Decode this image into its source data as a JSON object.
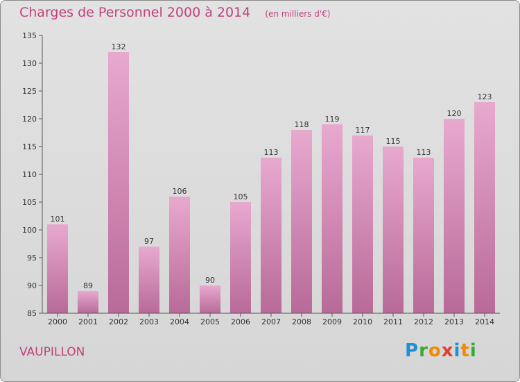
{
  "title": "Charges de Personnel 2000 à 2014",
  "unit": "(en milliers d'€)",
  "commune": "VAUPILLON",
  "logo": {
    "text": "Proxiti",
    "colors": [
      "#1e90d8",
      "#3aaa35",
      "#f08c00",
      "#e63c2e",
      "#1e90d8",
      "#f08c00",
      "#3aaa35"
    ]
  },
  "colors": {
    "title": "#c2407e",
    "bar_top": "#e8a9cf",
    "bar_bottom": "#b86a98"
  },
  "chart_data": {
    "type": "bar",
    "categories": [
      "2000",
      "2001",
      "2002",
      "2003",
      "2004",
      "2005",
      "2006",
      "2007",
      "2008",
      "2009",
      "2010",
      "2011",
      "2012",
      "2013",
      "2014"
    ],
    "values": [
      101,
      89,
      132,
      97,
      106,
      90,
      105,
      113,
      118,
      119,
      117,
      115,
      113,
      120,
      123
    ],
    "ylim": [
      85,
      135
    ],
    "yticks": [
      85,
      90,
      95,
      100,
      105,
      110,
      115,
      120,
      125,
      130,
      135
    ],
    "grid": false,
    "data_labels": true
  }
}
